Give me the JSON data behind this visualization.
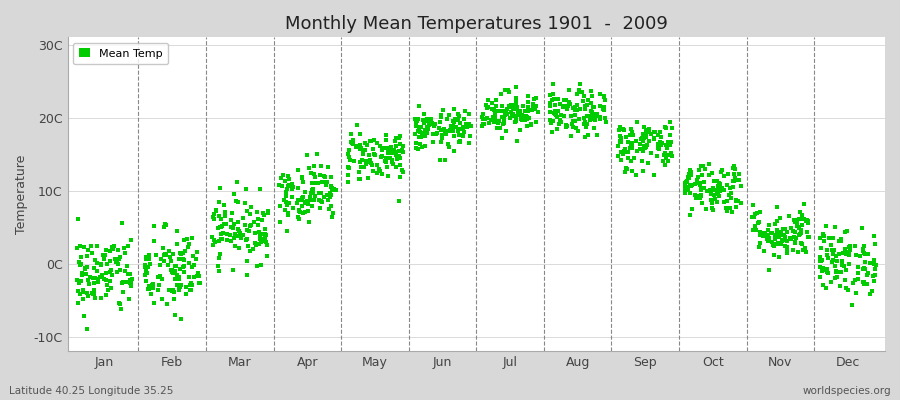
{
  "title": "Monthly Mean Temperatures 1901  -  2009",
  "ylabel": "Temperature",
  "xlabel_labels": [
    "Jan",
    "Feb",
    "Mar",
    "Apr",
    "May",
    "Jun",
    "Jul",
    "Aug",
    "Sep",
    "Oct",
    "Nov",
    "Dec"
  ],
  "ytick_labels": [
    "-10C",
    "0C",
    "10C",
    "20C",
    "30C"
  ],
  "ytick_values": [
    -10,
    0,
    10,
    20,
    30
  ],
  "ylim": [
    -12,
    31
  ],
  "legend_label": "Mean Temp",
  "dot_color": "#00cc00",
  "dot_size": 6,
  "figure_bg_color": "#d8d8d8",
  "plot_bg_color": "#ffffff",
  "subtitle_left": "Latitude 40.25 Longitude 35.25",
  "subtitle_right": "worldspecies.org",
  "monthly_means": [
    -1.5,
    -1.2,
    4.8,
    9.8,
    14.8,
    18.2,
    20.8,
    20.5,
    16.2,
    10.5,
    4.2,
    0.3
  ],
  "monthly_stds": [
    2.8,
    3.0,
    2.3,
    2.0,
    1.8,
    1.4,
    1.4,
    1.6,
    1.8,
    1.8,
    1.8,
    2.3
  ],
  "num_years": 109,
  "seed": 42
}
